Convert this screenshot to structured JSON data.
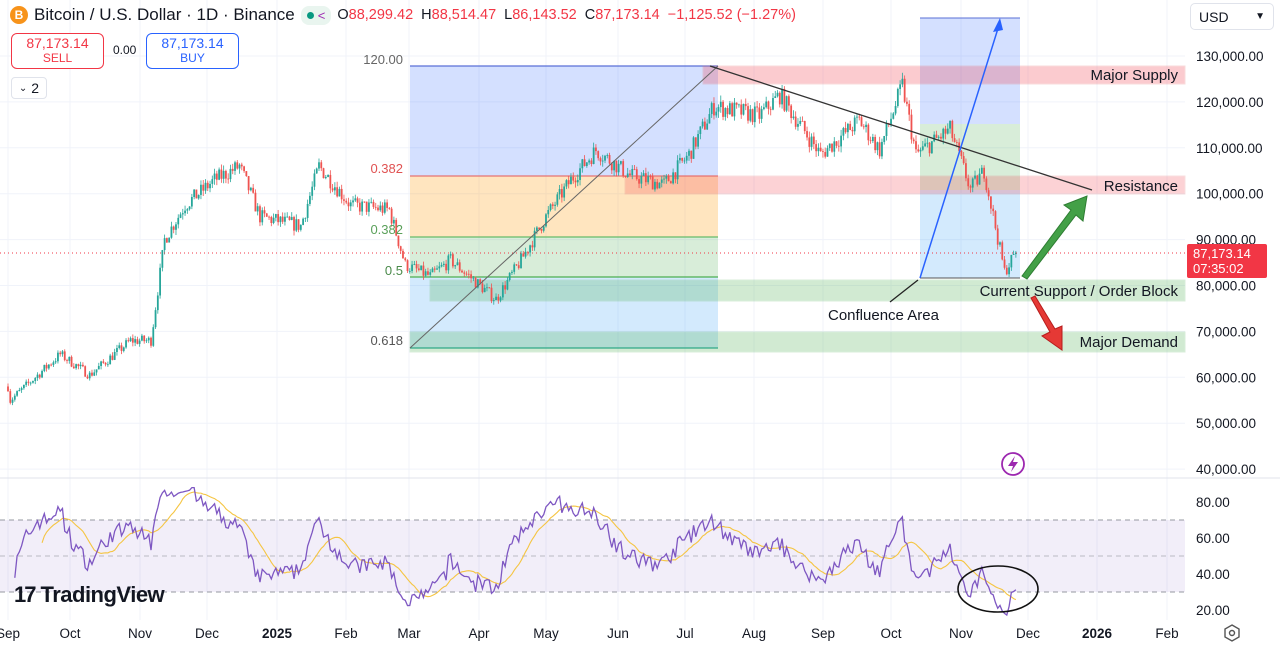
{
  "header": {
    "coin_icon": "B",
    "title": "Bitcoin / U.S. Dollar · 1D · Binance",
    "ohlc": {
      "o_label": "O",
      "o": "88,299.42",
      "h_label": "H",
      "h": "88,514.47",
      "l_label": "L",
      "l": "86,143.52",
      "c_label": "C",
      "c": "87,173.14",
      "change": "−1,125.52 (−1.27%)"
    }
  },
  "trade": {
    "sell_price": "87,173.14",
    "sell_label": "SELL",
    "spread": "0.00",
    "buy_price": "87,173.14",
    "buy_label": "BUY"
  },
  "collapse": {
    "count": "2"
  },
  "currency": "USD",
  "price_badge": {
    "price": "87,173.14",
    "countdown": "07:35:02"
  },
  "logo": "TradingView",
  "annotations": {
    "major_supply": "Major Supply",
    "resistance": "Resistance",
    "support": "Current Support / Order Block",
    "confluence": "Confluence Area",
    "major_demand": "Major Demand",
    "fib_top": "120.00",
    "fib_382a": "0.382",
    "fib_382b": "0.382",
    "fib_5": "0.5",
    "fib_618": "0.618"
  },
  "colors": {
    "up": "#26a69a",
    "down": "#ef5350",
    "rsi": "#7e57c2",
    "rsi_ma": "#f5c542"
  },
  "chart_data": {
    "type": "candlestick",
    "title": "Bitcoin / U.S. Dollar · 1D · Binance",
    "ylabel": "USD",
    "ylim": [
      40000,
      130000
    ],
    "y_ticks": [
      "130,000.00",
      "120,000.00",
      "110,000.00",
      "100,000.00",
      "90,000.00",
      "80,000.00",
      "70,000.00",
      "60,000.00",
      "50,000.00",
      "40,000.00"
    ],
    "x_ticks": [
      "Sep",
      "Oct",
      "Nov",
      "Dec",
      "2025",
      "Feb",
      "Mar",
      "Apr",
      "May",
      "Jun",
      "Jul",
      "Aug",
      "Sep",
      "Oct",
      "Nov",
      "Dec",
      "2026",
      "Feb"
    ],
    "x_start": "2024-09-01",
    "price_path_day_price": [
      [
        0,
        58000
      ],
      [
        1,
        55000
      ],
      [
        23,
        65000
      ],
      [
        36,
        60500
      ],
      [
        54,
        68000
      ],
      [
        63,
        68000
      ],
      [
        69,
        90000
      ],
      [
        78,
        97500
      ],
      [
        91,
        103000
      ],
      [
        102,
        106000
      ],
      [
        111,
        95000
      ],
      [
        129,
        93000
      ],
      [
        137,
        106000
      ],
      [
        151,
        97500
      ],
      [
        168,
        96500
      ],
      [
        175,
        84500
      ],
      [
        186,
        82000
      ],
      [
        195,
        85500
      ],
      [
        215,
        77000
      ],
      [
        226,
        85500
      ],
      [
        237,
        95000
      ],
      [
        248,
        103000
      ],
      [
        259,
        109500
      ],
      [
        274,
        104000
      ],
      [
        289,
        102000
      ],
      [
        300,
        108500
      ],
      [
        311,
        119000
      ],
      [
        331,
        117000
      ],
      [
        340,
        121500
      ],
      [
        358,
        108500
      ],
      [
        375,
        116000
      ],
      [
        384,
        109500
      ],
      [
        394,
        123600
      ],
      [
        400,
        108500
      ],
      [
        415,
        114000
      ],
      [
        424,
        101000
      ],
      [
        430,
        105000
      ],
      [
        439,
        83000
      ],
      [
        444,
        87173
      ]
    ],
    "last_price": 87173.14,
    "zones": [
      {
        "name": "Major Supply",
        "range": [
          124000,
          128000
        ]
      },
      {
        "name": "Resistance",
        "range": [
          100000,
          104000
        ]
      },
      {
        "name": "Current Support / Order Block",
        "range": [
          77000,
          82000
        ]
      },
      {
        "name": "Major Demand",
        "range": [
          65500,
          70000
        ]
      }
    ],
    "rsi": {
      "ylim": [
        15,
        90
      ],
      "y_ticks": [
        "80.00",
        "60.00",
        "40.00",
        "20.00"
      ],
      "bands": [
        70,
        50,
        30
      ],
      "period": 14
    }
  }
}
